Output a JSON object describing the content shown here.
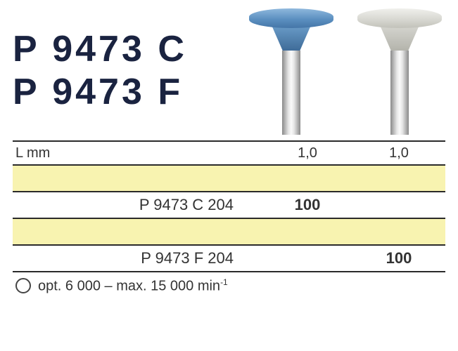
{
  "codes": {
    "line1": "P 9473 C",
    "line2": "P 9473 F"
  },
  "products": {
    "blue": {
      "head_color_top": "#8fb8dd",
      "head_color_bot": "#4576a8"
    },
    "grey": {
      "head_color_top": "#f0f0ec",
      "head_color_bot": "#c2c2ba"
    }
  },
  "table": {
    "lmm_label": "L mm",
    "lmm_col1": "1,0",
    "lmm_col2": "1,0",
    "row_c": {
      "label": "P 9473 C 204",
      "col1": "100",
      "col2": ""
    },
    "row_f": {
      "label": "P 9473 F 204",
      "col1": "",
      "col2": "100"
    }
  },
  "footer": {
    "text_a": "opt. 6 000 – max. 15 000 min",
    "exp": "-1"
  },
  "colors": {
    "yellow": "#f8f3b0",
    "border": "#2a2a2a",
    "text_dark": "#1a2340"
  }
}
